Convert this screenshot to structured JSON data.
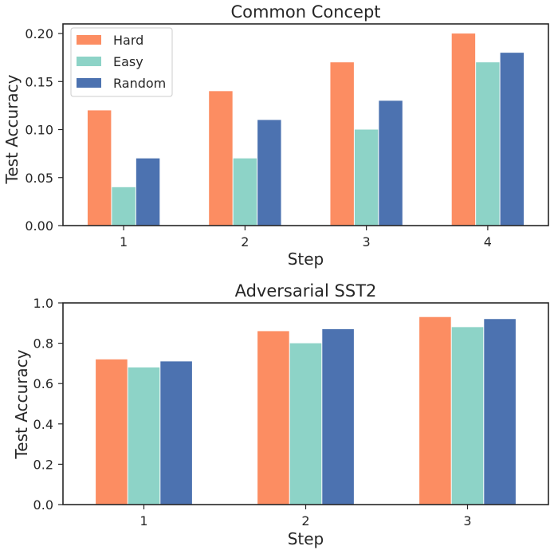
{
  "colors": {
    "hard": "#fc8d62",
    "easy": "#8dd3c7",
    "random": "#4c72b0",
    "axis": "#262626",
    "legend_border": "#cccccc"
  },
  "chart_data": [
    {
      "type": "bar",
      "title": "Common Concept",
      "xlabel": "Step",
      "ylabel": "Test Accuracy",
      "categories": [
        "1",
        "2",
        "3",
        "4"
      ],
      "ylim": [
        0,
        0.21
      ],
      "yticks": [
        "0.00",
        "0.05",
        "0.10",
        "0.15",
        "0.20"
      ],
      "grid": false,
      "legend": "top-left",
      "series": [
        {
          "name": "Hard",
          "color": "#fc8d62",
          "values": [
            0.12,
            0.14,
            0.17,
            0.2
          ]
        },
        {
          "name": "Easy",
          "color": "#8dd3c7",
          "values": [
            0.04,
            0.07,
            0.1,
            0.17
          ]
        },
        {
          "name": "Random",
          "color": "#4c72b0",
          "values": [
            0.07,
            0.11,
            0.13,
            0.18
          ]
        }
      ]
    },
    {
      "type": "bar",
      "title": "Adversarial SST2",
      "xlabel": "Step",
      "ylabel": "Test Accuracy",
      "categories": [
        "1",
        "2",
        "3"
      ],
      "ylim": [
        0,
        1.0
      ],
      "yticks": [
        "0.0",
        "0.2",
        "0.4",
        "0.6",
        "0.8",
        "1.0"
      ],
      "grid": false,
      "legend": "none",
      "series": [
        {
          "color": "#fc8d62",
          "values": [
            0.72,
            0.86,
            0.93
          ]
        },
        {
          "color": "#8dd3c7",
          "values": [
            0.68,
            0.8,
            0.88
          ]
        },
        {
          "color": "#4c72b0",
          "values": [
            0.71,
            0.87,
            0.92
          ]
        }
      ]
    }
  ]
}
